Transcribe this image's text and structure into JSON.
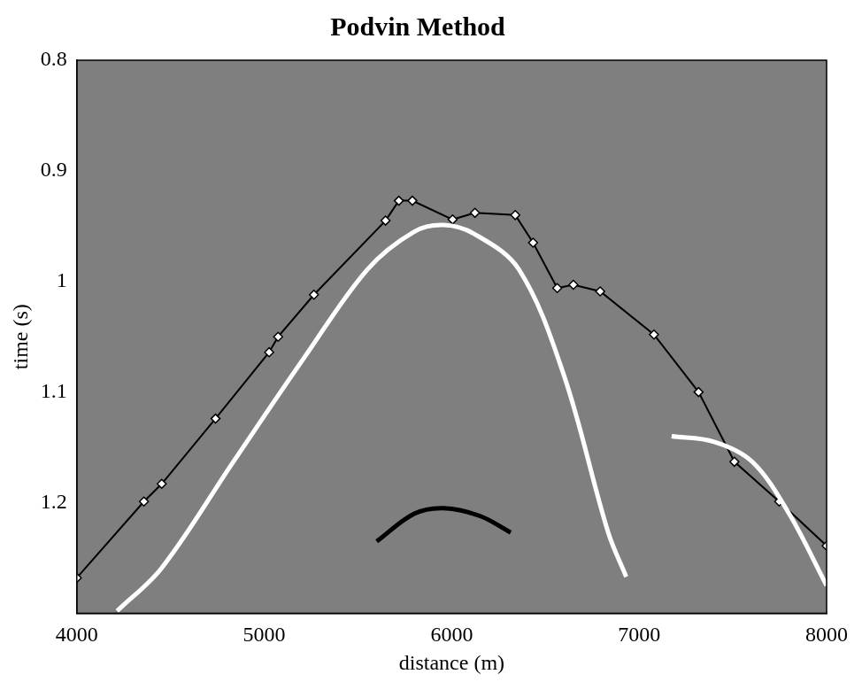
{
  "chart_data": {
    "type": "line",
    "title": "Podvin Method",
    "x_label": "distance (m)",
    "y_label": "time (s)",
    "xlim": [
      4000,
      8000
    ],
    "ylim": [
      0.8,
      1.3
    ],
    "xticks": [
      4000,
      5000,
      6000,
      7000,
      8000
    ],
    "yticks": [
      0.8,
      0.9,
      1,
      1.1,
      1.2
    ],
    "y_reversed": true,
    "grid": false,
    "series": [
      {
        "color": "#ffffff",
        "line_style": "solid",
        "marker": "none",
        "x": [
          4215,
          4453,
          4835,
          5217,
          5551,
          5800,
          5957,
          6120,
          6358,
          6597,
          6835,
          6931
        ],
        "values": [
          1.298,
          1.259,
          1.163,
          1.068,
          0.989,
          0.955,
          0.949,
          0.957,
          0.989,
          1.084,
          1.227,
          1.267
        ]
      },
      {
        "color": "#000000",
        "line_style": "solid",
        "marker": "none",
        "x": [
          5600,
          5800,
          5957,
          6150,
          6315
        ],
        "values": [
          1.235,
          1.21,
          1.205,
          1.212,
          1.227
        ]
      },
      {
        "color": "#ffffff",
        "line_style": "solid",
        "marker": "none",
        "x": [
          7173,
          7400,
          7603,
          7800,
          8000
        ],
        "values": [
          1.14,
          1.145,
          1.163,
          1.21,
          1.275
        ]
      },
      {
        "color": "#ffffff",
        "line_style": "solid",
        "marker": "diamond",
        "x": [
          4000,
          4358,
          4453,
          4740,
          5026,
          5074,
          5265,
          5647,
          5718,
          5790,
          6005,
          6124,
          6339,
          6434,
          6563,
          6649,
          6792,
          7079,
          7317,
          7508,
          7747,
          8000
        ],
        "values": [
          1.268,
          1.199,
          1.183,
          1.124,
          1.064,
          1.05,
          1.012,
          0.945,
          0.927,
          0.927,
          0.944,
          0.938,
          0.94,
          0.965,
          1.006,
          1.003,
          1.009,
          1.048,
          1.1,
          1.163,
          1.199,
          1.239
        ]
      }
    ]
  }
}
